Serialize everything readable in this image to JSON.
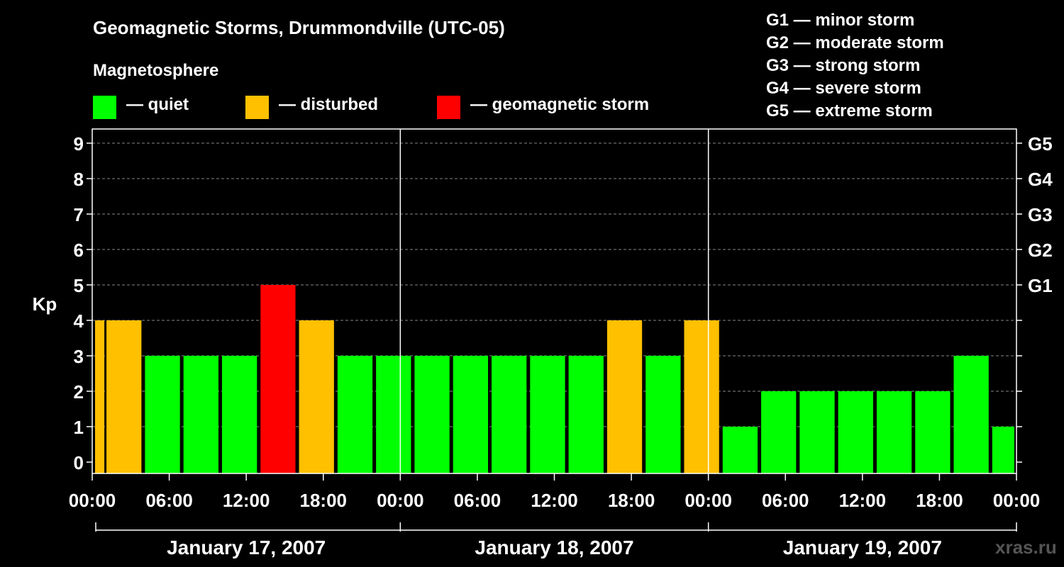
{
  "title": "Geomagnetic Storms, Drummondville (UTC-05)",
  "magnetosphere": {
    "heading": "Magnetosphere",
    "legend": [
      {
        "label": "— quiet",
        "color": "#00ff00"
      },
      {
        "label": "— disturbed",
        "color": "#ffc000"
      },
      {
        "label": "— geomagnetic storm",
        "color": "#ff0000"
      }
    ]
  },
  "g_levels": [
    "G1 — minor storm",
    "G2 — moderate storm",
    "G3 — strong storm",
    "G4 — severe storm",
    "G5 — extreme storm"
  ],
  "watermark": "xras.ru",
  "chart_data": {
    "type": "bar",
    "ylabel": "Kp",
    "ylim": [
      0,
      9
    ],
    "y_ticks": [
      "0",
      "1",
      "2",
      "3",
      "4",
      "5",
      "6",
      "7",
      "8",
      "9"
    ],
    "right_axis": [
      {
        "kp": 5,
        "label": "G1"
      },
      {
        "kp": 6,
        "label": "G2"
      },
      {
        "kp": 7,
        "label": "G3"
      },
      {
        "kp": 8,
        "label": "G4"
      },
      {
        "kp": 9,
        "label": "G5"
      }
    ],
    "x_tick_labels": [
      "00:00",
      "06:00",
      "12:00",
      "18:00",
      "00:00",
      "06:00",
      "12:00",
      "18:00",
      "00:00",
      "06:00",
      "12:00",
      "18:00",
      "00:00"
    ],
    "dates": [
      "January 17, 2007",
      "January 18, 2007",
      "January 19, 2007"
    ],
    "grid": true,
    "colors": {
      "quiet": "#00ff00",
      "disturbed": "#ffc000",
      "storm": "#ff0000"
    },
    "bars": [
      {
        "start_hour": 0,
        "kp": 4
      },
      {
        "start_hour": 1,
        "kp": 4
      },
      {
        "start_hour": 4,
        "kp": 3
      },
      {
        "start_hour": 7,
        "kp": 3
      },
      {
        "start_hour": 10,
        "kp": 3
      },
      {
        "start_hour": 13,
        "kp": 5
      },
      {
        "start_hour": 16,
        "kp": 4
      },
      {
        "start_hour": 19,
        "kp": 3
      },
      {
        "start_hour": 22,
        "kp": 3
      },
      {
        "start_hour": 25,
        "kp": 3
      },
      {
        "start_hour": 28,
        "kp": 3
      },
      {
        "start_hour": 31,
        "kp": 3
      },
      {
        "start_hour": 34,
        "kp": 3
      },
      {
        "start_hour": 37,
        "kp": 3
      },
      {
        "start_hour": 40,
        "kp": 4
      },
      {
        "start_hour": 43,
        "kp": 3
      },
      {
        "start_hour": 46,
        "kp": 4
      },
      {
        "start_hour": 49,
        "kp": 1
      },
      {
        "start_hour": 52,
        "kp": 2
      },
      {
        "start_hour": 55,
        "kp": 2
      },
      {
        "start_hour": 58,
        "kp": 2
      },
      {
        "start_hour": 61,
        "kp": 2
      },
      {
        "start_hour": 64,
        "kp": 2
      },
      {
        "start_hour": 67,
        "kp": 3
      },
      {
        "start_hour": 70,
        "kp": 1
      }
    ]
  }
}
